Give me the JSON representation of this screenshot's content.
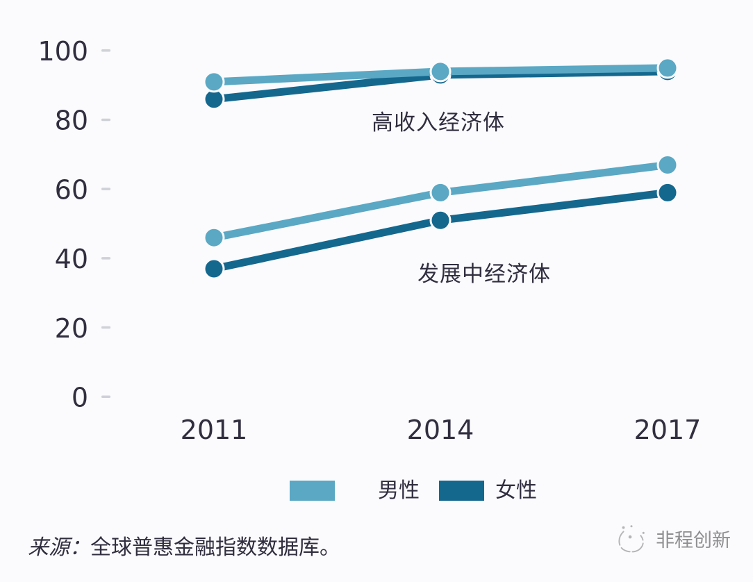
{
  "chart_data": {
    "type": "line",
    "x": [
      2011,
      2014,
      2017
    ],
    "x_labels": [
      "2011",
      "2014",
      "2017"
    ],
    "ylim": [
      0,
      100
    ],
    "yticks": [
      0,
      20,
      40,
      60,
      80,
      100
    ],
    "grid": false,
    "series": [
      {
        "group": "高收入经济体",
        "gender": "男性",
        "color": "#5AA8C4",
        "values": [
          91,
          94,
          95
        ]
      },
      {
        "group": "高收入经济体",
        "gender": "女性",
        "color": "#14688E",
        "values": [
          86,
          93,
          94
        ]
      },
      {
        "group": "发展中经济体",
        "gender": "男性",
        "color": "#5AA8C4",
        "values": [
          46,
          59,
          67
        ]
      },
      {
        "group": "发展中经济体",
        "gender": "女性",
        "color": "#14688E",
        "values": [
          37,
          51,
          59
        ]
      }
    ],
    "annotations": [
      {
        "text": "高收入经济体"
      },
      {
        "text": "发展中经济体"
      }
    ],
    "legend": {
      "position": "bottom",
      "items": [
        {
          "label": "男性",
          "color": "#5AA8C4"
        },
        {
          "label": "女性",
          "color": "#14688E"
        }
      ]
    }
  },
  "source_note": {
    "prefix": "来源：",
    "text": "全球普惠金融指数数据库。"
  },
  "watermark": {
    "text": "非程创新"
  },
  "colors": {
    "male": "#5AA8C4",
    "female": "#14688E",
    "text": "#302E3F",
    "tick": "#CED1D8",
    "background": "#FBFAFC",
    "watermark": "#8F8F91"
  }
}
